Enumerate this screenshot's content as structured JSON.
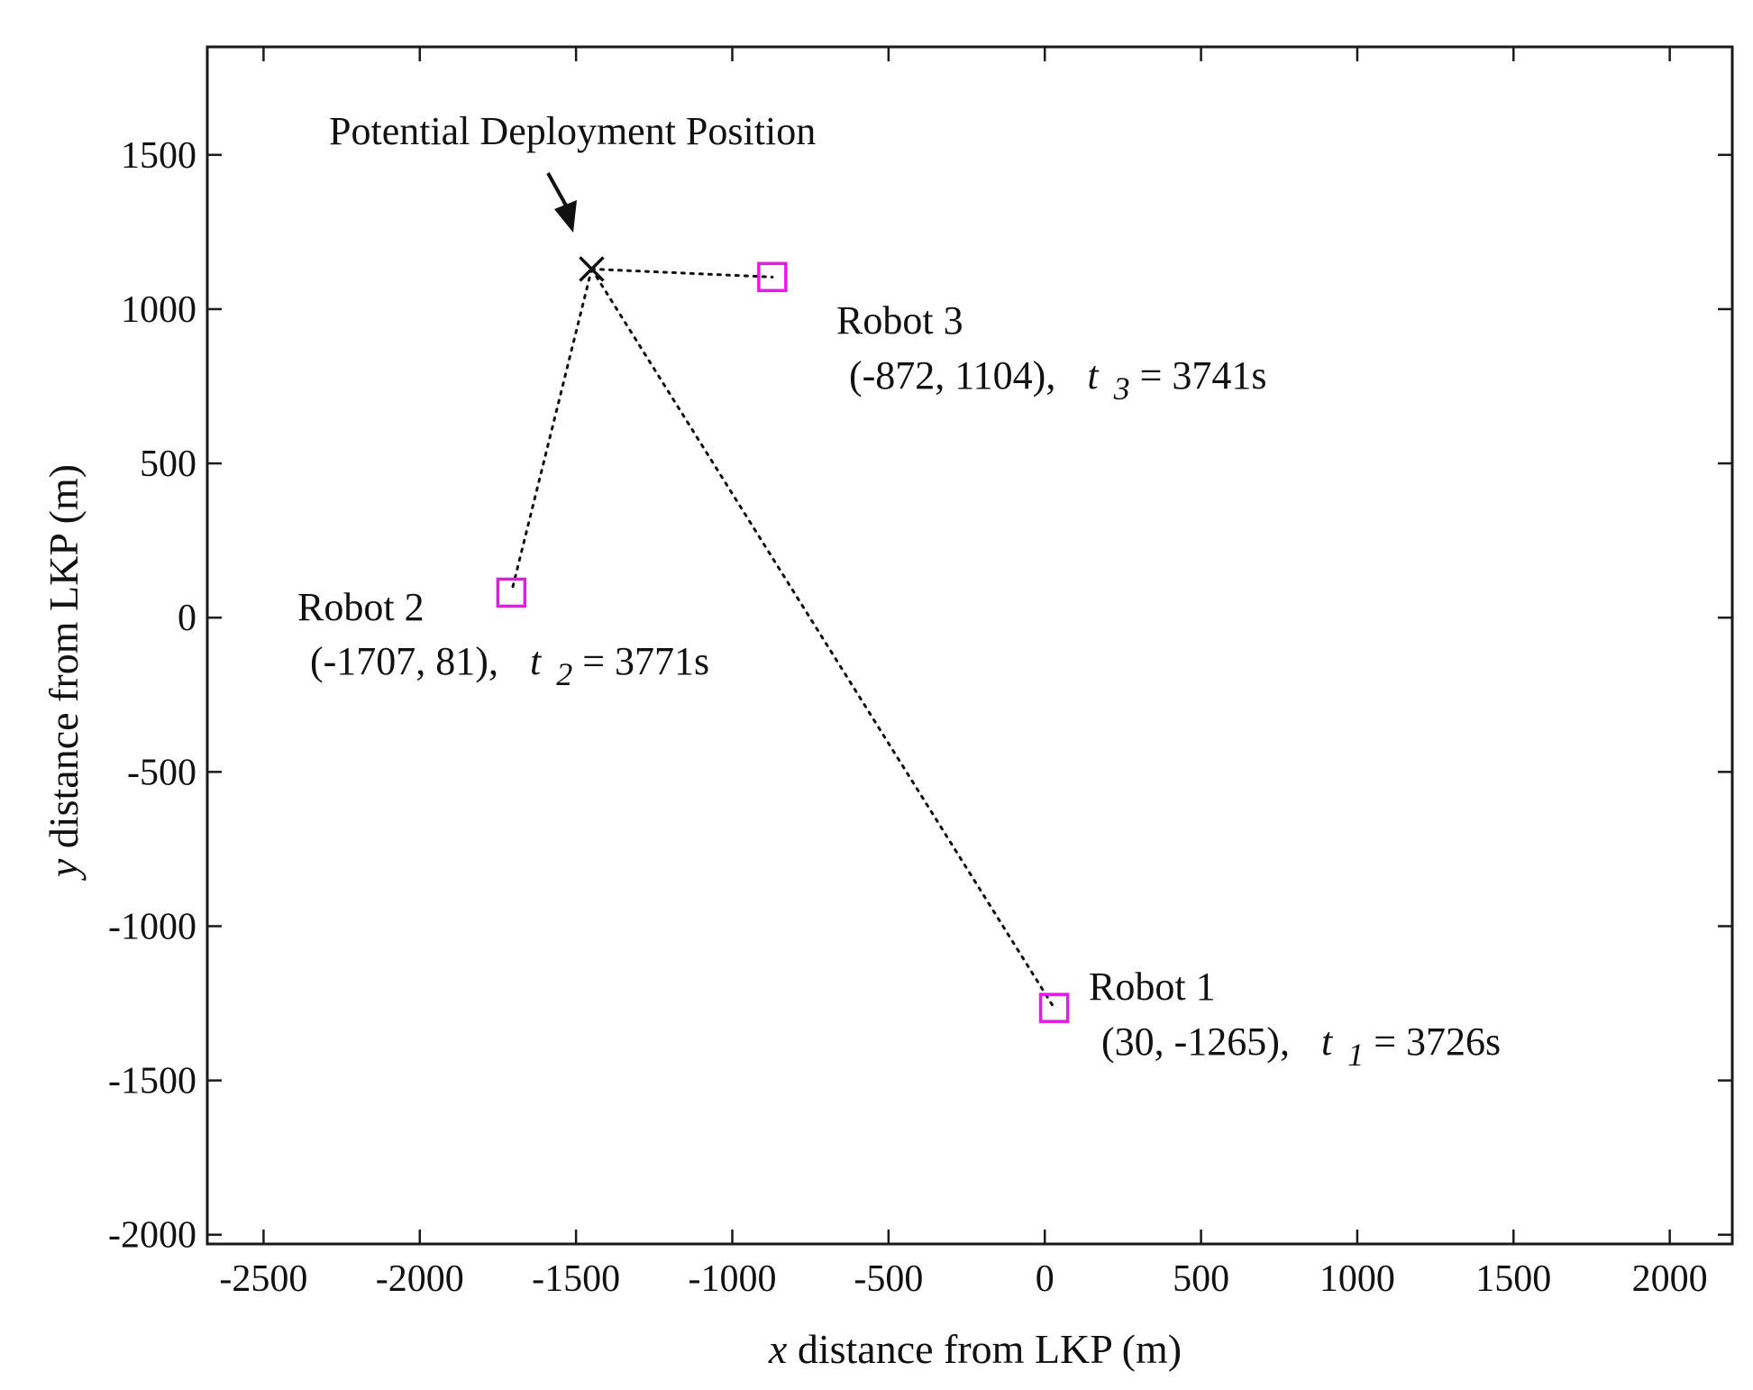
{
  "chart_data": {
    "type": "scatter",
    "title": "",
    "xlabel": {
      "var": "x",
      "text": " distance from LKP (m)"
    },
    "ylabel": {
      "var": "y",
      "text": " distance from LKP (m)"
    },
    "xlim": [
      -2680,
      2200
    ],
    "ylim": [
      -2030,
      1850
    ],
    "xticks": [
      -2500,
      -2000,
      -1500,
      -1000,
      -500,
      0,
      500,
      1000,
      1500,
      2000
    ],
    "yticks": [
      -2000,
      -1500,
      -1000,
      -500,
      0,
      500,
      1000,
      1500
    ],
    "grid": false,
    "marker_color": "#e619e6",
    "deployment": {
      "label": "Potential Deployment Position",
      "x": -1450,
      "y": 1130,
      "marker": "x"
    },
    "robots": [
      {
        "name": "Robot 1",
        "x": 30,
        "y": -1265,
        "coord_text": "(30, -1265),",
        "t_var": "t",
        "t_sub": "1",
        "t_value": " = 3726s"
      },
      {
        "name": "Robot 2",
        "x": -1707,
        "y": 81,
        "coord_text": "(-1707, 81),",
        "t_var": "t",
        "t_sub": "2",
        "t_value": " = 3771s"
      },
      {
        "name": "Robot 3",
        "x": -872,
        "y": 1104,
        "coord_text": "(-872, 1104),",
        "t_var": "t",
        "t_sub": "3",
        "t_value": " = 3741s"
      }
    ]
  }
}
